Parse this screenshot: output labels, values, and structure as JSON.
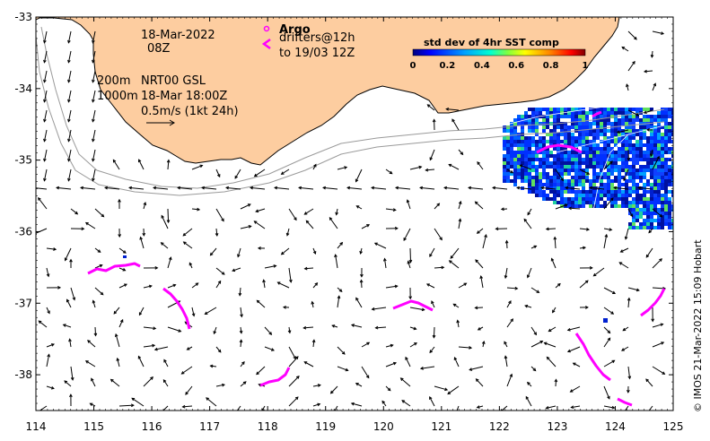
{
  "map": {
    "x_ticks": [
      114,
      115,
      116,
      117,
      118,
      119,
      120,
      121,
      122,
      123,
      124,
      125
    ],
    "y_ticks": [
      -33,
      -34,
      -35,
      -36,
      -37,
      -38
    ],
    "lon_range": [
      114,
      125
    ],
    "lat_range": [
      -38.5,
      -33
    ],
    "colors": {
      "land": "#fdcda0",
      "coast": "#000000",
      "isobath": "#9a9a9a",
      "drifter": "#ff00ff",
      "arrow": "#000000"
    }
  },
  "annotations": {
    "date_line1": "18-Mar-2022",
    "date_line2": "08Z",
    "depth_line1": "200m",
    "depth_line1b": "NRT00 GSL",
    "depth_line2": "1000m",
    "depth_line2b": "18-Mar 18:00Z",
    "scale_label": "0.5m/s (1kt 24h)"
  },
  "legend": {
    "argo_label": "Argo",
    "argo_marker": "o",
    "drifter_line1": "drifters@12h",
    "drifter_line2": "to 19/03 12Z",
    "drifter_marker": "<"
  },
  "colorbar": {
    "title": "std dev of 4hr SST comp",
    "ticks": [
      "0",
      "0.2",
      "0.4",
      "0.6",
      "0.8",
      "1"
    ],
    "colors": [
      "#000080",
      "#0000ff",
      "#00a0ff",
      "#00ffd0",
      "#80ff40",
      "#ffff00",
      "#ff8000",
      "#ff0000",
      "#800000"
    ]
  },
  "credit": "© IMOS 21-Mar-2022 15:09 Hobart"
}
